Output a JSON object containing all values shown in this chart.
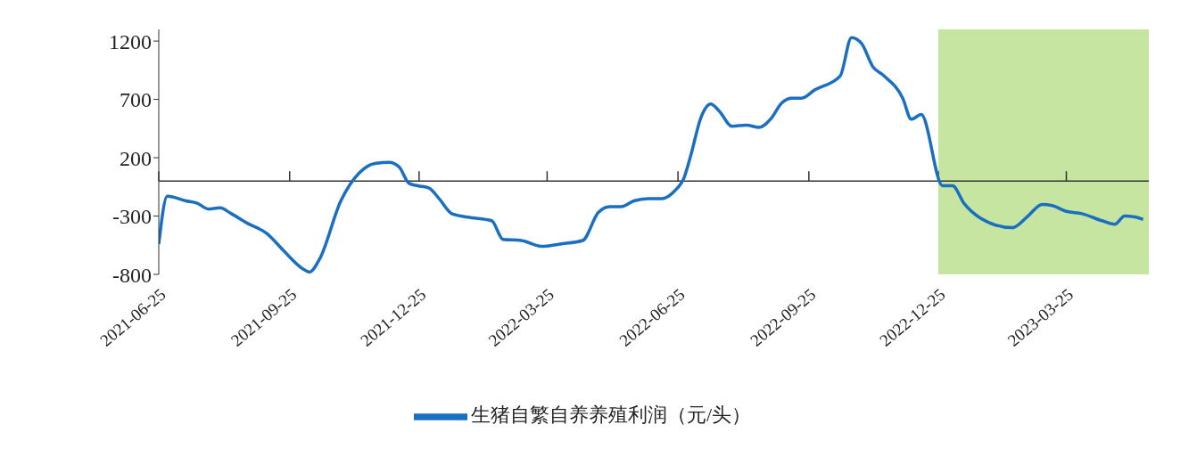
{
  "chart_data": {
    "type": "line",
    "x": [
      "2021-06-25",
      "2021-07-01",
      "2021-07-14",
      "2021-07-22",
      "2021-07-30",
      "2021-08-07",
      "2021-08-15",
      "2021-08-26",
      "2021-09-09",
      "2021-09-21",
      "2021-10-04",
      "2021-10-09",
      "2021-10-16",
      "2021-10-31",
      "2021-11-13",
      "2021-11-24",
      "2021-12-04",
      "2021-12-11",
      "2021-12-18",
      "2021-12-24",
      "2022-01-01",
      "2022-01-08",
      "2022-01-17",
      "2022-01-28",
      "2022-02-14",
      "2022-02-22",
      "2022-03-07",
      "2022-03-21",
      "2022-04-03",
      "2022-04-19",
      "2022-04-30",
      "2022-05-08",
      "2022-05-16",
      "2022-05-25",
      "2022-06-04",
      "2022-06-14",
      "2022-06-23",
      "2022-06-29",
      "2022-07-04",
      "2022-07-11",
      "2022-07-18",
      "2022-07-24",
      "2022-08-02",
      "2022-08-12",
      "2022-08-21",
      "2022-08-29",
      "2022-09-06",
      "2022-09-13",
      "2022-09-20",
      "2022-09-29",
      "2022-10-17",
      "2022-10-25",
      "2022-11-01",
      "2022-11-09",
      "2022-11-16",
      "2022-11-30",
      "2022-12-06",
      "2022-12-13",
      "2022-12-28",
      "2023-01-04",
      "2023-01-12",
      "2023-01-24",
      "2023-02-15",
      "2023-02-26",
      "2023-03-08",
      "2023-03-15",
      "2023-03-25",
      "2023-04-05",
      "2023-04-19",
      "2023-04-28",
      "2023-05-05",
      "2023-05-13",
      "2023-05-18"
    ],
    "series": [
      {
        "name": "生猪自繁自养养殖利润（元/头）",
        "color": "#1a6fc0",
        "values": [
          -540,
          -130,
          -170,
          -190,
          -240,
          -230,
          -280,
          -360,
          -450,
          -600,
          -750,
          -780,
          -670,
          -170,
          70,
          150,
          160,
          120,
          -20,
          -40,
          -60,
          -150,
          -280,
          -310,
          -340,
          -500,
          -510,
          -560,
          -540,
          -510,
          -270,
          -220,
          -220,
          -170,
          -150,
          -150,
          -80,
          20,
          220,
          540,
          660,
          600,
          470,
          480,
          460,
          530,
          670,
          710,
          710,
          780,
          900,
          1230,
          1180,
          980,
          910,
          710,
          530,
          570,
          -40,
          -40,
          -190,
          -320,
          -400,
          -300,
          -200,
          -210,
          -260,
          -280,
          -340,
          -370,
          -300,
          -310,
          -330
        ]
      }
    ],
    "xlim": [
      "2021-06-25",
      "2023-05-22"
    ],
    "xticks": [
      "2021-06-25",
      "2021-09-25",
      "2021-12-25",
      "2022-03-25",
      "2022-06-25",
      "2022-09-25",
      "2022-12-25",
      "2023-03-25"
    ],
    "ylim": [
      -800,
      1300
    ],
    "yticks": [
      -800,
      -300,
      200,
      700,
      1200
    ],
    "ref_lines": [
      {
        "axis": "y",
        "value": 0,
        "color": "#333333"
      }
    ],
    "bands": [
      {
        "axis": "x",
        "from": "2022-12-25",
        "to": "2023-05-22",
        "color": "#c6e5a0"
      }
    ],
    "marker": "none",
    "line_style": "solid",
    "legend": "bottom"
  }
}
